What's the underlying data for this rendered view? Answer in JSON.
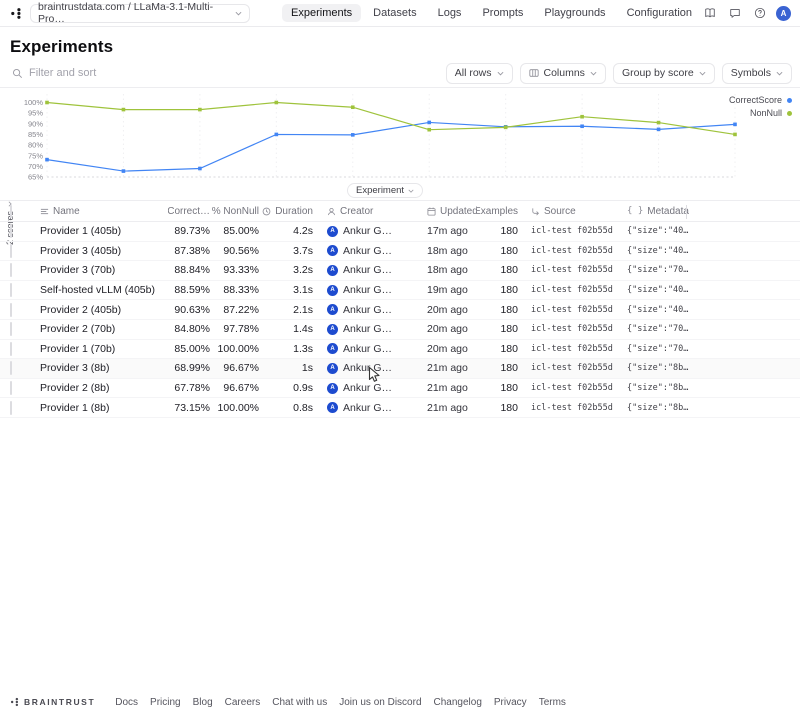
{
  "nav": {
    "breadcrumb": "braintrustdata.com / LLaMa-3.1-Multi-Pro…",
    "tabs": [
      {
        "label": "Experiments",
        "active": true
      },
      {
        "label": "Datasets",
        "active": false
      },
      {
        "label": "Logs",
        "active": false
      },
      {
        "label": "Prompts",
        "active": false
      },
      {
        "label": "Playgrounds",
        "active": false
      },
      {
        "label": "Configuration",
        "active": false
      }
    ],
    "right_icons": [
      "docs-book",
      "feedback-chat",
      "help-circle"
    ],
    "avatar_initial": "A"
  },
  "page": {
    "title": "Experiments"
  },
  "filterbar": {
    "search_placeholder": "Filter and sort",
    "controls": [
      {
        "label": "All rows",
        "icon": null
      },
      {
        "label": "Columns",
        "icon": "columns"
      },
      {
        "label": "Group by score",
        "icon": null
      },
      {
        "label": "Symbols",
        "icon": null
      }
    ]
  },
  "chart_data": {
    "type": "line",
    "title": "",
    "ylabel": "2 scores",
    "x_axis_control": "Experiment",
    "categories": [
      "Provider 1 (8b)",
      "Provider 2 (8b)",
      "Provider 3 (8b)",
      "Provider 1 (70b)",
      "Provider 2 (70b)",
      "Provider 2 (405b)",
      "Self-hosted vLLM (405b)",
      "Provider 3 (70b)",
      "Provider 3 (405b)",
      "Provider 1 (405b)"
    ],
    "series": [
      {
        "name": "CorrectScore",
        "color": "#4285f4",
        "values": [
          73.15,
          67.78,
          68.99,
          85.0,
          84.8,
          90.63,
          88.59,
          88.84,
          87.38,
          89.73
        ]
      },
      {
        "name": "NonNull",
        "color": "#9fc33c",
        "values": [
          100.0,
          96.67,
          96.67,
          100.0,
          97.78,
          87.22,
          88.33,
          93.33,
          90.56,
          85.0
        ]
      }
    ],
    "ylim": [
      65,
      100
    ],
    "yticks": [
      100,
      95,
      90,
      85,
      80,
      75,
      70,
      65
    ],
    "ytick_suffix": "%",
    "legend_position": "top-right",
    "grid": "vertical-faint"
  },
  "table": {
    "columns": [
      {
        "key": "name",
        "label": "Name",
        "icon": "text",
        "align": "left"
      },
      {
        "key": "correct",
        "label": "% Correct…",
        "icon": "percent",
        "align": "right"
      },
      {
        "key": "nonnull",
        "label": "% NonNull",
        "icon": "percent",
        "align": "right"
      },
      {
        "key": "duration",
        "label": "Duration",
        "icon": "clock",
        "align": "right"
      },
      {
        "key": "creator",
        "label": "Creator",
        "icon": "person",
        "align": "left"
      },
      {
        "key": "updated",
        "label": "Updated",
        "icon": "calendar",
        "align": "left"
      },
      {
        "key": "examples",
        "label": "Examples",
        "icon": "hash",
        "align": "right"
      },
      {
        "key": "source",
        "label": "Source",
        "icon": "source-arrow",
        "align": "left"
      },
      {
        "key": "metadata",
        "label": "Metadata",
        "icon": "braces",
        "align": "left"
      }
    ],
    "hovered_row": 7,
    "rows": [
      {
        "name": "Provider 1 (405b)",
        "correct": "89.73%",
        "nonnull": "85.00%",
        "duration": "4.2s",
        "creator": "Ankur G…",
        "updated": "17m ago",
        "examples": "180",
        "source": "icl-test f02b55d",
        "metadata": "{\"size\":\"40…"
      },
      {
        "name": "Provider 3 (405b)",
        "correct": "87.38%",
        "nonnull": "90.56%",
        "duration": "3.7s",
        "creator": "Ankur G…",
        "updated": "18m ago",
        "examples": "180",
        "source": "icl-test f02b55d",
        "metadata": "{\"size\":\"40…"
      },
      {
        "name": "Provider 3 (70b)",
        "correct": "88.84%",
        "nonnull": "93.33%",
        "duration": "3.2s",
        "creator": "Ankur G…",
        "updated": "18m ago",
        "examples": "180",
        "source": "icl-test f02b55d",
        "metadata": "{\"size\":\"70…"
      },
      {
        "name": "Self-hosted vLLM (405b)",
        "correct": "88.59%",
        "nonnull": "88.33%",
        "duration": "3.1s",
        "creator": "Ankur G…",
        "updated": "19m ago",
        "examples": "180",
        "source": "icl-test f02b55d",
        "metadata": "{\"size\":\"40…"
      },
      {
        "name": "Provider 2 (405b)",
        "correct": "90.63%",
        "nonnull": "87.22%",
        "duration": "2.1s",
        "creator": "Ankur G…",
        "updated": "20m ago",
        "examples": "180",
        "source": "icl-test f02b55d",
        "metadata": "{\"size\":\"40…"
      },
      {
        "name": "Provider 2 (70b)",
        "correct": "84.80%",
        "nonnull": "97.78%",
        "duration": "1.4s",
        "creator": "Ankur G…",
        "updated": "20m ago",
        "examples": "180",
        "source": "icl-test f02b55d",
        "metadata": "{\"size\":\"70…"
      },
      {
        "name": "Provider 1 (70b)",
        "correct": "85.00%",
        "nonnull": "100.00%",
        "duration": "1.3s",
        "creator": "Ankur G…",
        "updated": "20m ago",
        "examples": "180",
        "source": "icl-test f02b55d",
        "metadata": "{\"size\":\"70…"
      },
      {
        "name": "Provider 3 (8b)",
        "correct": "68.99%",
        "nonnull": "96.67%",
        "duration": "1s",
        "creator": "Ankur G…",
        "updated": "21m ago",
        "examples": "180",
        "source": "icl-test f02b55d",
        "metadata": "{\"size\":\"8b…"
      },
      {
        "name": "Provider 2 (8b)",
        "correct": "67.78%",
        "nonnull": "96.67%",
        "duration": "0.9s",
        "creator": "Ankur G…",
        "updated": "21m ago",
        "examples": "180",
        "source": "icl-test f02b55d",
        "metadata": "{\"size\":\"8b…"
      },
      {
        "name": "Provider 1 (8b)",
        "correct": "73.15%",
        "nonnull": "100.00%",
        "duration": "0.8s",
        "creator": "Ankur G…",
        "updated": "21m ago",
        "examples": "180",
        "source": "icl-test f02b55d",
        "metadata": "{\"size\":\"8b…"
      }
    ]
  },
  "footer": {
    "brand": "BRAINTRUST",
    "links": [
      "Docs",
      "Pricing",
      "Blog",
      "Careers",
      "Chat with us",
      "Join us on Discord",
      "Changelog",
      "Privacy",
      "Terms"
    ]
  }
}
